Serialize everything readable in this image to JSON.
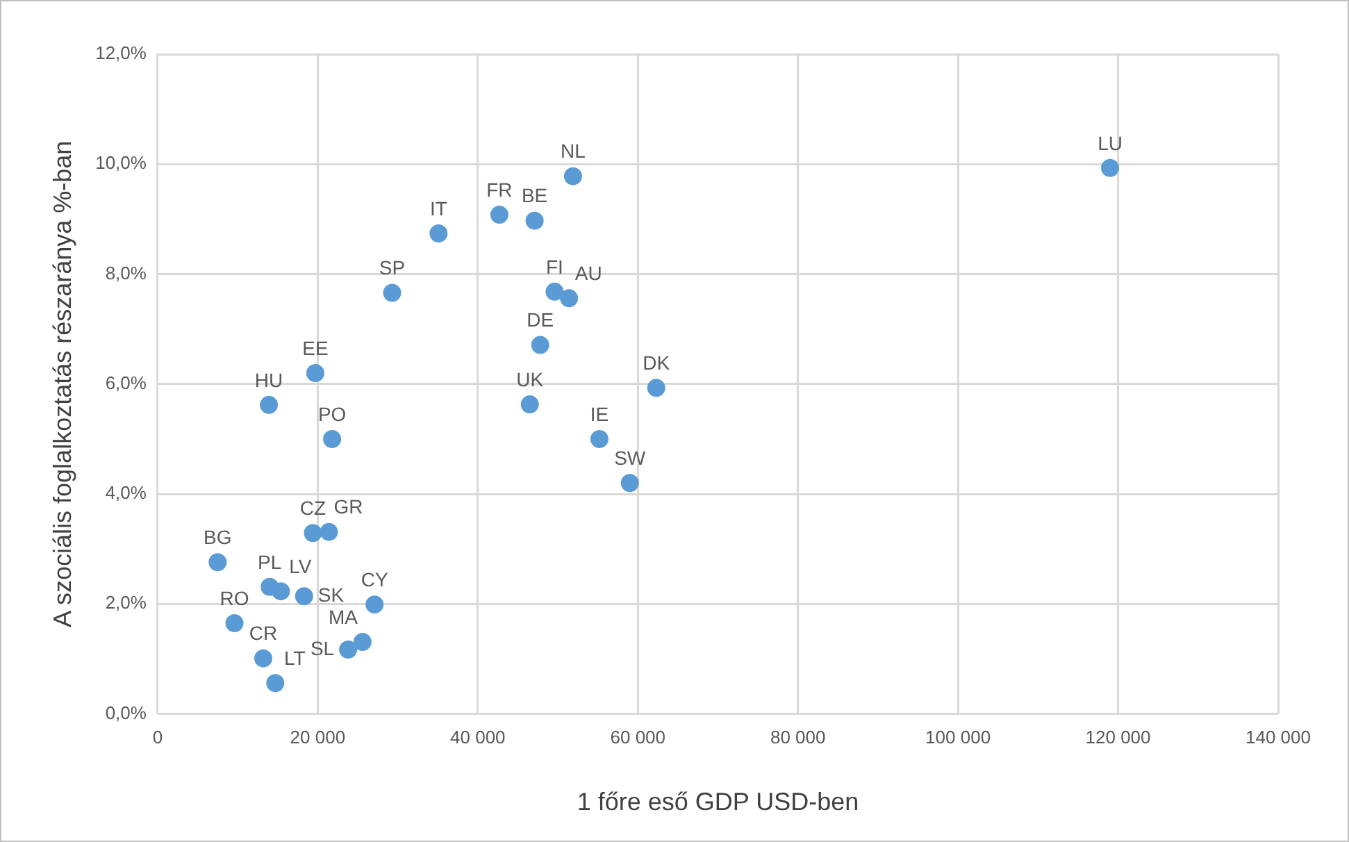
{
  "chart_data": {
    "type": "scatter",
    "xlabel": "1 főre eső GDP USD-ben",
    "ylabel": "A szociális foglalkoztatás részaránya %-ban",
    "x": [
      119000,
      51900,
      42700,
      47100,
      35100,
      29300,
      49600,
      51400,
      47800,
      46500,
      62300,
      55200,
      59000,
      19700,
      13900,
      21800,
      19400,
      21400,
      7500,
      14000,
      15400,
      18300,
      27100,
      25600,
      23800,
      9600,
      13200,
      14700
    ],
    "series": [
      {
        "color": "#5b9bd5",
        "values": [
          9.93,
          9.78,
          9.08,
          8.97,
          8.74,
          7.66,
          7.68,
          7.56,
          6.71,
          5.63,
          5.93,
          5.0,
          4.2,
          6.2,
          5.62,
          5.0,
          3.29,
          3.31,
          2.76,
          2.31,
          2.23,
          2.14,
          1.99,
          1.31,
          1.17,
          1.65,
          1.01,
          0.56
        ]
      }
    ],
    "annotations": [
      {
        "text": "LU",
        "x": 119000,
        "y": 9.93
      },
      {
        "text": "NL",
        "x": 51900,
        "y": 9.78
      },
      {
        "text": "FR",
        "x": 42700,
        "y": 9.08
      },
      {
        "text": "BE",
        "x": 47100,
        "y": 8.97
      },
      {
        "text": "IT",
        "x": 35100,
        "y": 8.74
      },
      {
        "text": "SP",
        "x": 29300,
        "y": 7.66
      },
      {
        "text": "FI",
        "x": 49600,
        "y": 7.68
      },
      {
        "text": "AU",
        "x": 51400,
        "y": 7.56
      },
      {
        "text": "DE",
        "x": 47800,
        "y": 6.71
      },
      {
        "text": "UK",
        "x": 46500,
        "y": 5.63
      },
      {
        "text": "DK",
        "x": 62300,
        "y": 5.93
      },
      {
        "text": "IE",
        "x": 55200,
        "y": 5.0
      },
      {
        "text": "SW",
        "x": 59000,
        "y": 4.2
      },
      {
        "text": "EE",
        "x": 19700,
        "y": 6.2
      },
      {
        "text": "HU",
        "x": 13900,
        "y": 5.62
      },
      {
        "text": "PO",
        "x": 21800,
        "y": 5.0
      },
      {
        "text": "CZ",
        "x": 19400,
        "y": 3.29
      },
      {
        "text": "GR",
        "x": 21400,
        "y": 3.31
      },
      {
        "text": "BG",
        "x": 7500,
        "y": 2.76
      },
      {
        "text": "PL",
        "x": 14000,
        "y": 2.31
      },
      {
        "text": "LV",
        "x": 15400,
        "y": 2.23
      },
      {
        "text": "SK",
        "x": 18300,
        "y": 2.14
      },
      {
        "text": "CY",
        "x": 27100,
        "y": 1.99
      },
      {
        "text": "MA",
        "x": 25600,
        "y": 1.31
      },
      {
        "text": "SL",
        "x": 23800,
        "y": 1.17
      },
      {
        "text": "RO",
        "x": 9600,
        "y": 1.65
      },
      {
        "text": "CR",
        "x": 13200,
        "y": 1.01
      },
      {
        "text": "LT",
        "x": 14700,
        "y": 0.56
      }
    ],
    "xlim": [
      0,
      140000
    ],
    "xticks": [
      0,
      {
        "value": 20000,
        "label": "20 000"
      },
      {
        "value": 40000,
        "label": "40 000"
      },
      {
        "value": 60000,
        "label": "60 000"
      },
      {
        "value": 80000,
        "label": "80 000"
      },
      {
        "value": 100000,
        "label": "100 000"
      },
      {
        "value": 120000,
        "label": "120 000"
      },
      {
        "value": 140000,
        "label": "140 000"
      }
    ],
    "ylim": [
      0,
      12
    ],
    "yticks": [
      {
        "value": 0,
        "label": "0,0%"
      },
      {
        "value": 2,
        "label": "2,0%"
      },
      {
        "value": 4,
        "label": "4,0%"
      },
      {
        "value": 6,
        "label": "6,0%"
      },
      {
        "value": 8,
        "label": "8,0%"
      },
      {
        "value": 10,
        "label": "10,0%"
      },
      {
        "value": 12,
        "label": "12,0%"
      }
    ],
    "grid": true,
    "legend": false,
    "marker": "circle"
  }
}
